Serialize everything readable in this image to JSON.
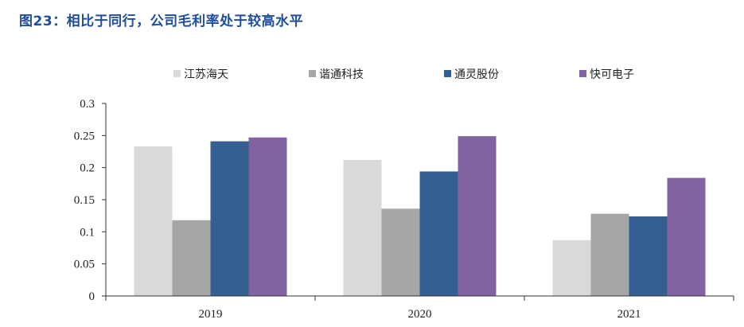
{
  "figure": {
    "title": "图23：相比于同行，公司毛利率处于较高水平"
  },
  "chart_data": {
    "type": "bar",
    "categories": [
      "2019",
      "2020",
      "2021"
    ],
    "series": [
      {
        "name": "江苏海天",
        "color": "#d9d9d9",
        "values": [
          0.233,
          0.212,
          0.087
        ]
      },
      {
        "name": "谐通科技",
        "color": "#a6a6a6",
        "values": [
          0.118,
          0.136,
          0.128
        ]
      },
      {
        "name": "通灵股份",
        "color": "#365f91",
        "values": [
          0.241,
          0.194,
          0.124
        ]
      },
      {
        "name": "快可电子",
        "color": "#8064a2",
        "values": [
          0.247,
          0.249,
          0.184
        ]
      }
    ],
    "ylim": [
      0,
      0.3
    ],
    "yticks": [
      "0",
      "0.05",
      "0.1",
      "0.15",
      "0.2",
      "0.25",
      "0.3"
    ],
    "legend_position": "top",
    "grid": false
  }
}
